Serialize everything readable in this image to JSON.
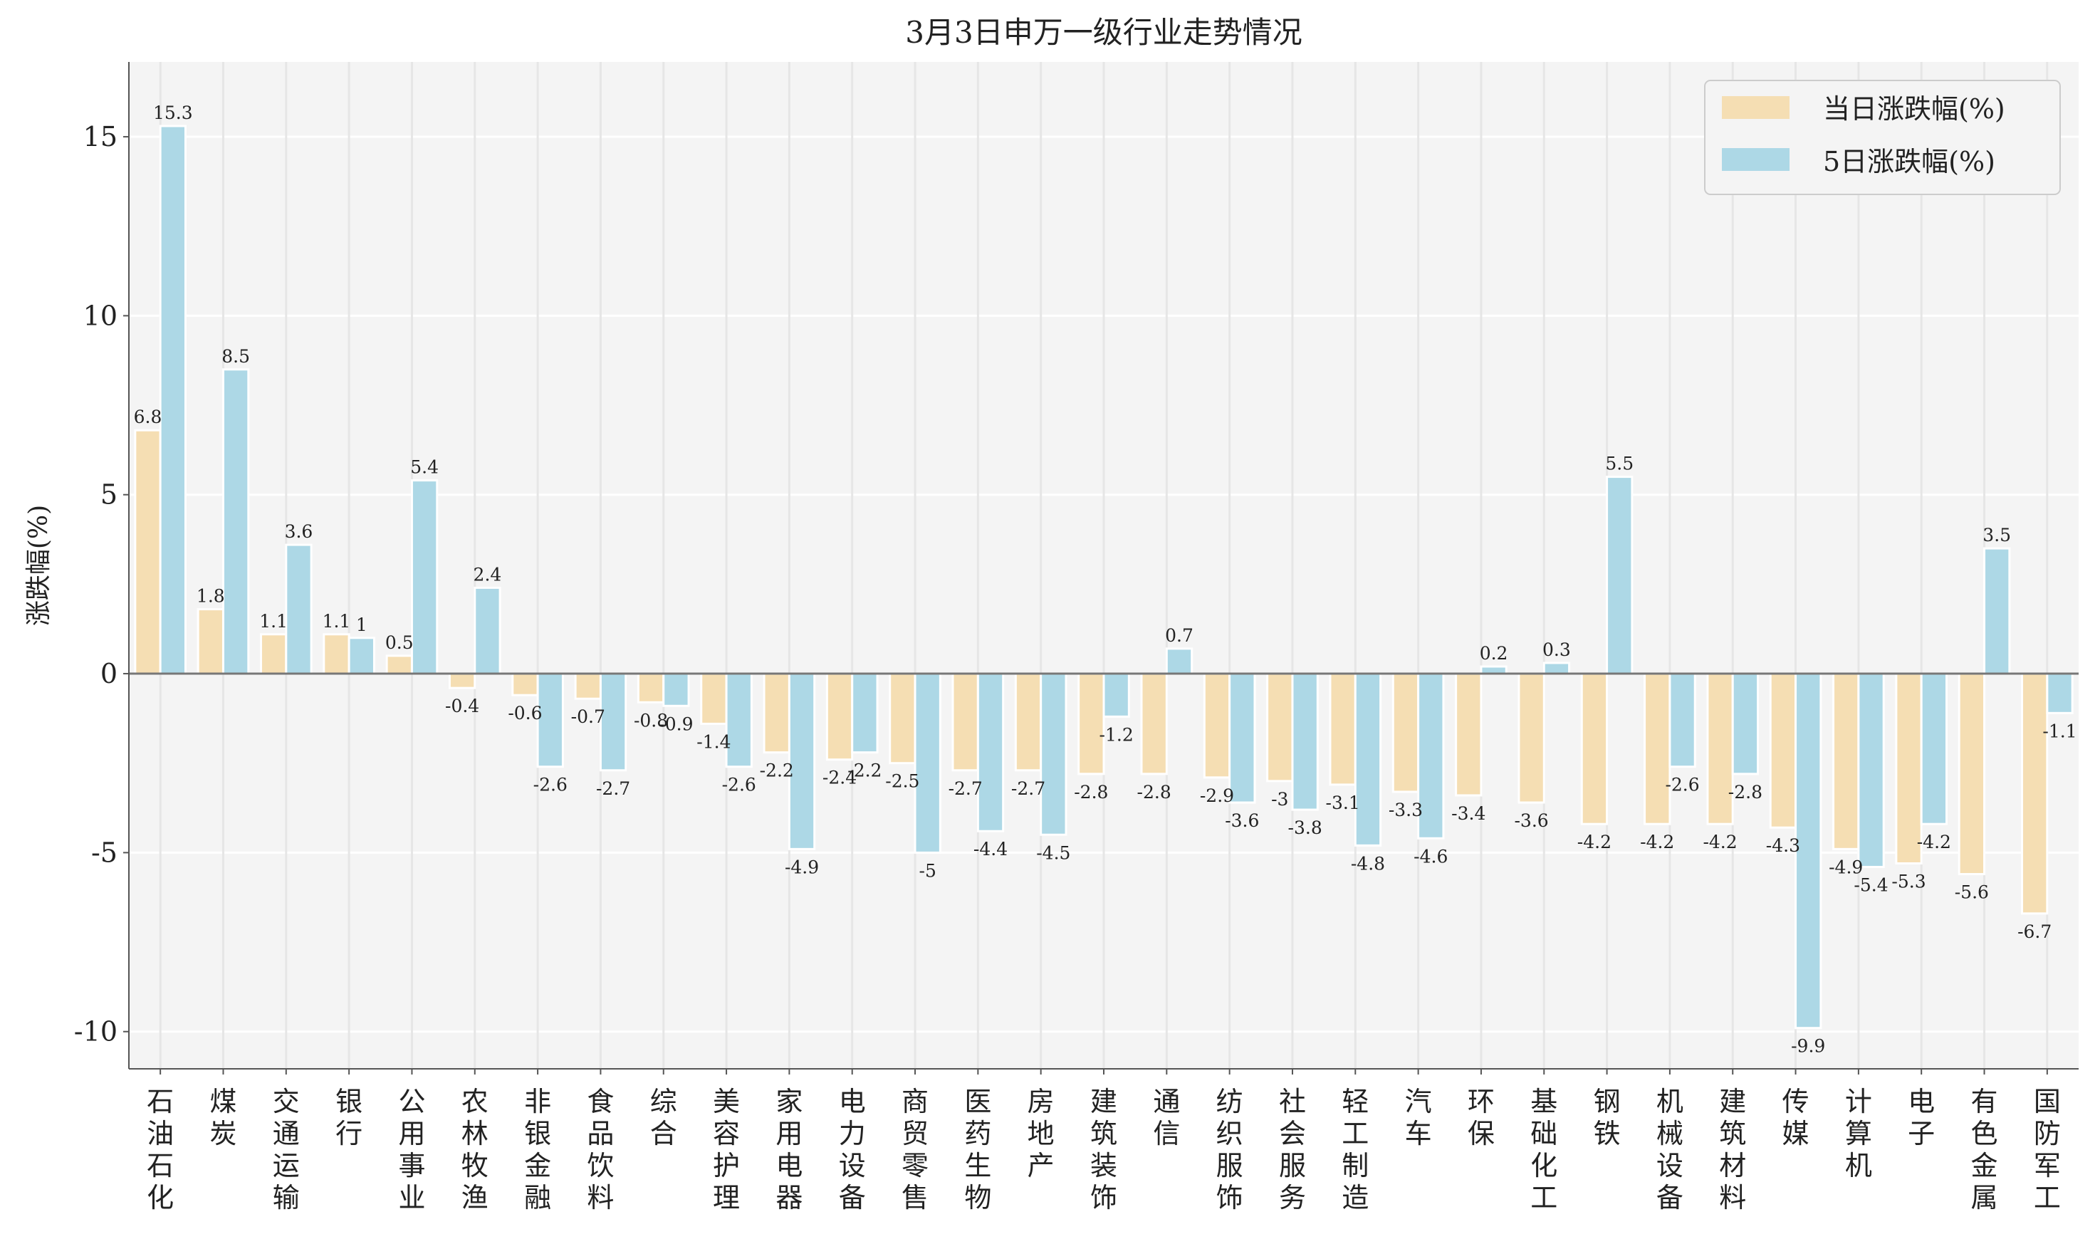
{
  "chart_data": {
    "type": "bar",
    "title": "3月3日申万一级行业走势情况",
    "xlabel": "",
    "ylabel": "涨跌幅(%)",
    "ylim": [
      -11.04,
      17.09
    ],
    "yticks": [
      -10,
      -5,
      0,
      5,
      10,
      15
    ],
    "ytick_labels": [
      "-10",
      "-5",
      "0",
      "5",
      "10",
      "15"
    ],
    "grid": true,
    "legend_position": "top-right",
    "categories": [
      "石油石化",
      "煤炭",
      "交通运输",
      "银行",
      "公用事业",
      "农林牧渔",
      "非银金融",
      "食品饮料",
      "综合",
      "美容护理",
      "家用电器",
      "电力设备",
      "商贸零售",
      "医药生物",
      "房地产",
      "建筑装饰",
      "通信",
      "纺织服饰",
      "社会服务",
      "轻工制造",
      "汽车",
      "环保",
      "基础化工",
      "钢铁",
      "机械设备",
      "建筑材料",
      "传媒",
      "计算机",
      "电子",
      "有色金属",
      "国防军工"
    ],
    "series": [
      {
        "name": "当日涨跌幅(%)",
        "color": "#f5deb3",
        "values": [
          6.8,
          1.8,
          1.1,
          1.1,
          0.5,
          -0.4,
          -0.6,
          -0.7,
          -0.8,
          -1.4,
          -2.2,
          -2.4,
          -2.5,
          -2.7,
          -2.7,
          -2.8,
          -2.8,
          -2.9,
          -3.0,
          -3.1,
          -3.3,
          -3.4,
          -3.6,
          -4.2,
          -4.2,
          -4.2,
          -4.3,
          -4.9,
          -5.3,
          -5.6,
          -6.7
        ]
      },
      {
        "name": "5日涨跌幅(%)",
        "color": "#add8e6",
        "values": [
          15.3,
          8.5,
          3.6,
          1.0,
          5.4,
          2.4,
          -2.6,
          -2.7,
          -0.9,
          -2.6,
          -4.9,
          -2.2,
          -5.0,
          -4.4,
          -4.5,
          -1.2,
          0.7,
          -3.6,
          -3.8,
          -4.8,
          -4.6,
          0.2,
          0.3,
          5.5,
          -2.6,
          -2.8,
          -9.9,
          -5.4,
          -4.2,
          3.5,
          -1.1
        ]
      }
    ]
  }
}
